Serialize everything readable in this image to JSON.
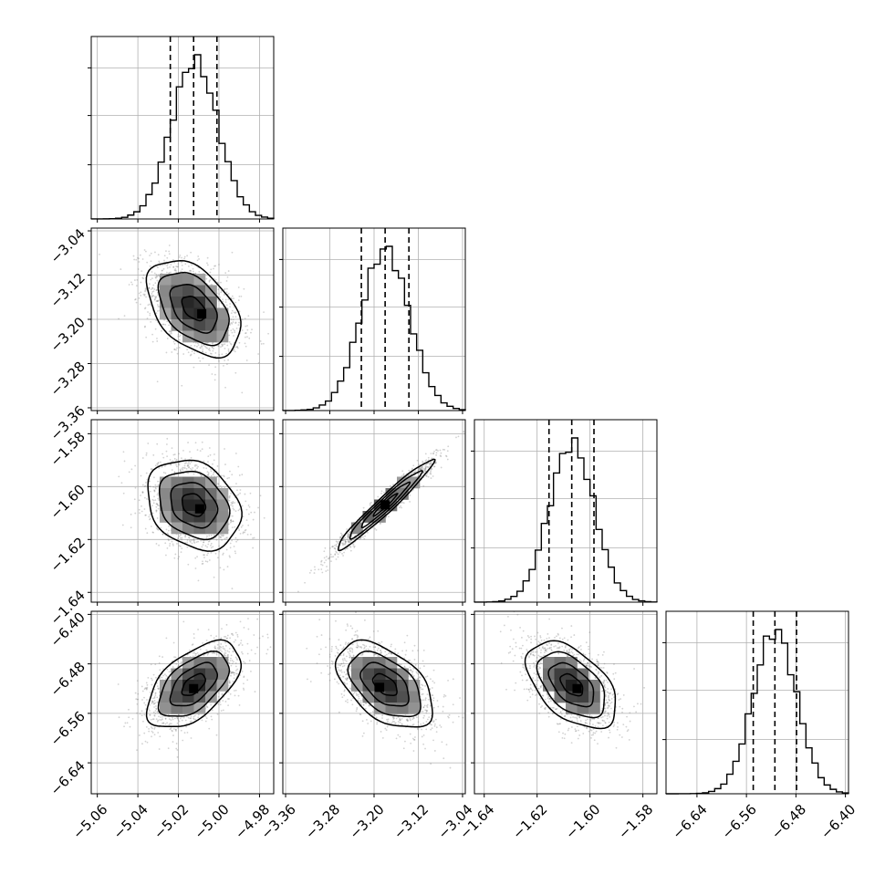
{
  "chart_data": {
    "type": "corner",
    "parameters": [
      {
        "range": [
          -5.063,
          -4.973
        ],
        "ticks": [
          -5.06,
          -5.04,
          -5.02,
          -5.0,
          -4.98
        ],
        "tick_labels": [
          "−5.06",
          "−5.04",
          "−5.02",
          "−5.00",
          "−4.98"
        ],
        "hist_mean": -5.012,
        "hist_sd": 0.0115,
        "quantiles": [
          -5.024,
          -5.0125,
          -5.001
        ]
      },
      {
        "range": [
          -3.365,
          -3.035
        ],
        "ticks": [
          -3.36,
          -3.28,
          -3.2,
          -3.12,
          -3.04
        ],
        "tick_labels": [
          "−3.36",
          "−3.28",
          "−3.20",
          "−3.12",
          "−3.04"
        ],
        "hist_mean": -3.18,
        "hist_sd": 0.0435,
        "quantiles": [
          -3.223,
          -3.18,
          -3.137
        ]
      },
      {
        "range": [
          -1.6437,
          -1.5747
        ],
        "ticks": [
          -1.64,
          -1.62,
          -1.6,
          -1.58
        ],
        "tick_labels": [
          "−1.64",
          "−1.62",
          "−1.60",
          "−1.58"
        ],
        "hist_mean": -1.6069,
        "hist_sd": 0.0085,
        "quantiles": [
          -1.6155,
          -1.6069,
          -1.5985
        ]
      },
      {
        "range": [
          -6.69,
          -6.395
        ],
        "ticks": [
          -6.64,
          -6.56,
          -6.48,
          -6.4
        ],
        "tick_labels": [
          "−6.64",
          "−6.56",
          "−6.48",
          "−6.40"
        ],
        "hist_mean": -6.514,
        "hist_sd": 0.035,
        "quantiles": [
          -6.549,
          -6.514,
          -6.479
        ]
      }
    ],
    "pairs": [
      {
        "row": 1,
        "col": 0,
        "center": [
          -5.0125,
          -3.18
        ],
        "corr": -0.45,
        "peak_offset": [
          0.004,
          -0.01
        ]
      },
      {
        "row": 2,
        "col": 0,
        "center": [
          -5.0125,
          -1.6069
        ],
        "corr": -0.25,
        "peak_offset": [
          0.003,
          -0.0015
        ]
      },
      {
        "row": 2,
        "col": 1,
        "center": [
          -3.18,
          -1.6069
        ],
        "corr": 0.97,
        "peak_offset": [
          0.0,
          0.0
        ]
      },
      {
        "row": 3,
        "col": 0,
        "center": [
          -5.0125,
          -6.514
        ],
        "corr": 0.55,
        "peak_offset": [
          0.0,
          -0.006
        ]
      },
      {
        "row": 3,
        "col": 1,
        "center": [
          -3.18,
          -6.514
        ],
        "corr": -0.5,
        "peak_offset": [
          -0.01,
          -0.004
        ]
      },
      {
        "row": 3,
        "col": 2,
        "center": [
          -1.6069,
          -6.514
        ],
        "corr": -0.5,
        "peak_offset": [
          0.002,
          -0.006
        ]
      }
    ],
    "quantile_levels": [
      0.16,
      0.5,
      0.84
    ],
    "contour_levels_sigma": [
      0.5,
      1.0,
      1.5,
      2.0
    ],
    "grid": true,
    "colors": {
      "line": "#000000",
      "points": "#7f7f7f",
      "grid": "#b0b0b0"
    }
  }
}
